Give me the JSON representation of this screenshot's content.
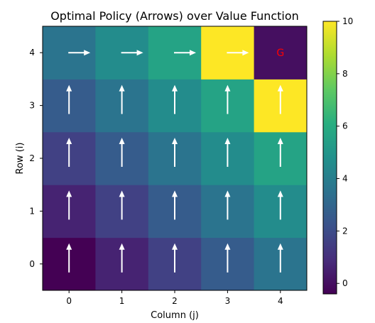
{
  "chart_data": {
    "type": "heatmap",
    "title": "Optimal Policy (Arrows) over Value Function",
    "xlabel": "Column (j)",
    "ylabel": "Row (i)",
    "x_ticks": [
      "0",
      "1",
      "2",
      "3",
      "4"
    ],
    "y_ticks": [
      "0",
      "1",
      "2",
      "3",
      "4"
    ],
    "y_origin": "bottom",
    "values": [
      [
        -0.4,
        0.6,
        1.6,
        2.6,
        3.6
      ],
      [
        0.6,
        1.6,
        2.6,
        3.6,
        4.6
      ],
      [
        1.6,
        2.6,
        3.6,
        4.6,
        5.6
      ],
      [
        2.6,
        3.6,
        4.6,
        5.6,
        10.0
      ],
      [
        3.6,
        4.6,
        5.6,
        10.0,
        0.0
      ]
    ],
    "policy": [
      [
        "up",
        "up",
        "up",
        "up",
        "up"
      ],
      [
        "up",
        "up",
        "up",
        "up",
        "up"
      ],
      [
        "up",
        "up",
        "up",
        "up",
        "up"
      ],
      [
        "up",
        "up",
        "up",
        "up",
        "up"
      ],
      [
        "right",
        "right",
        "right",
        "right",
        "goal"
      ]
    ],
    "goal_label": "G",
    "goal_color": "#ff0000",
    "arrow_color": "#ffffff",
    "colormap": "viridis",
    "vmin": -0.4,
    "vmax": 10.0,
    "colorbar_ticks": [
      "0",
      "2",
      "4",
      "6",
      "8",
      "10"
    ],
    "colorbar_tick_values": [
      0,
      2,
      4,
      6,
      8,
      10
    ]
  }
}
